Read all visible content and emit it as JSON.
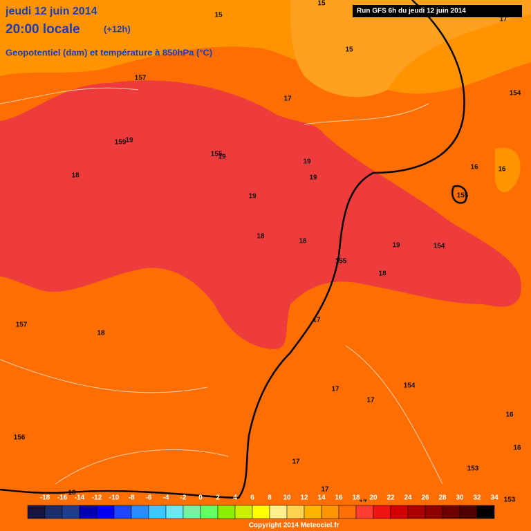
{
  "header": {
    "date": "jeudi 12 juin 2014",
    "time": "20:00 locale",
    "offset": "(+12h)",
    "subtitle": "Geopotentiel (dam) et température à 850hPa (°C)",
    "run": "Run GFS 6h du jeudi 12 juin 2014"
  },
  "map_labels": [
    "15",
    "15",
    "17",
    "15",
    "157",
    "17",
    "154",
    "159",
    "19",
    "155",
    "19",
    "19",
    "19",
    "16",
    "16",
    "18",
    "155",
    "19",
    "18",
    "18",
    "19",
    "154",
    "155",
    "18",
    "157",
    "18",
    "17",
    "17",
    "17",
    "154",
    "16",
    "16",
    "156",
    "17",
    "17",
    "153",
    "18",
    "153",
    "17"
  ],
  "legend": {
    "labels": [
      -18,
      -16,
      -14,
      -12,
      -10,
      -8,
      -6,
      -4,
      -2,
      0,
      2,
      4,
      6,
      8,
      10,
      12,
      14,
      16,
      18,
      20,
      22,
      24,
      26,
      28,
      30,
      32,
      34
    ],
    "colors": [
      "#151540",
      "#1a2e6a",
      "#203c8c",
      "#0000b4",
      "#0000f0",
      "#1e46ff",
      "#2a8cff",
      "#3cc8ff",
      "#6ee6f0",
      "#78f0a0",
      "#64ff64",
      "#8cf000",
      "#c8f000",
      "#ffff00",
      "#fff08c",
      "#ffd250",
      "#ffb400",
      "#ff9600",
      "#ff6e00",
      "#ff3c32",
      "#f01414",
      "#d20000",
      "#aa0000",
      "#8c0000",
      "#6e0000",
      "#500000",
      "#000000"
    ]
  },
  "footer": {
    "copyright": "Copyright 2014 Meteociel.fr"
  }
}
